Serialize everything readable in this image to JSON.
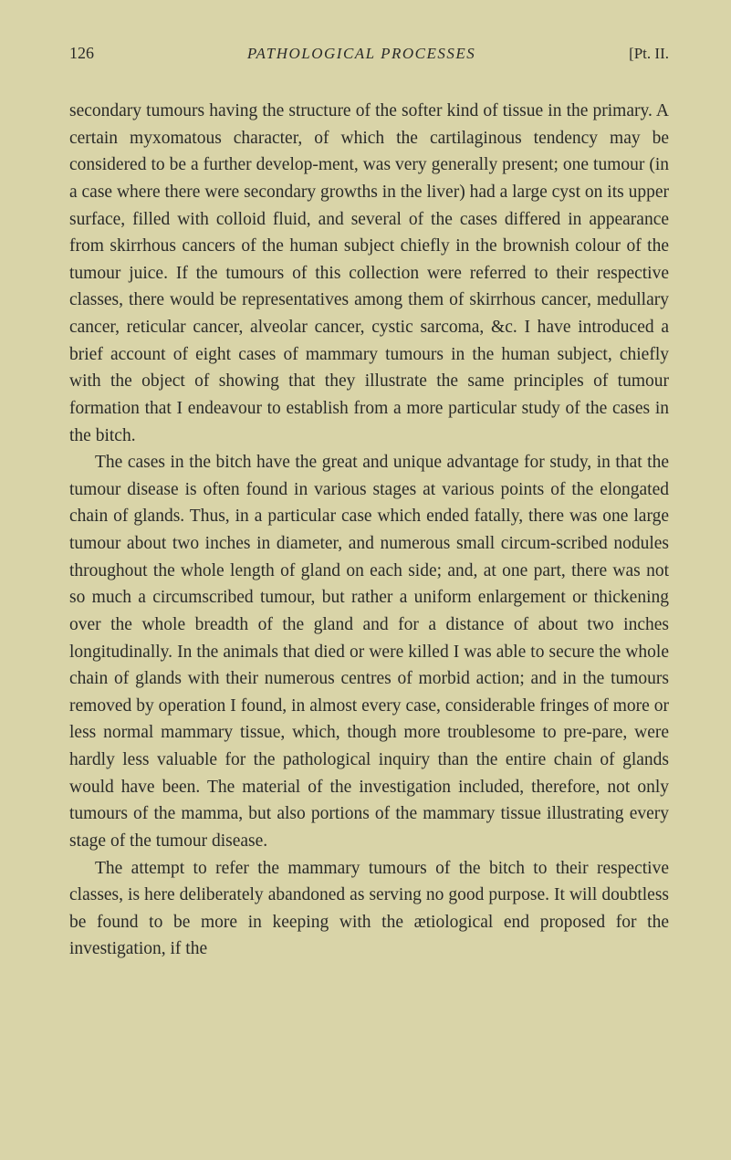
{
  "header": {
    "page_number": "126",
    "running_title": "PATHOLOGICAL PROCESSES",
    "part_label": "[Pt. II."
  },
  "paragraphs": {
    "p1": "secondary tumours having the structure of the softer kind of tissue in the primary. A certain myxomatous character, of which the cartilaginous tendency may be considered to be a further develop-ment, was very generally present; one tumour (in a case where there were secondary growths in the liver) had a large cyst on its upper surface, filled with colloid fluid, and several of the cases differed in appearance from skirrhous cancers of the human subject chiefly in the brownish colour of the tumour juice. If the tumours of this collection were referred to their respective classes, there would be representatives among them of skirrhous cancer, medullary cancer, reticular cancer, alveolar cancer, cystic sarcoma, &c. I have introduced a brief account of eight cases of mammary tumours in the human subject, chiefly with the object of showing that they illustrate the same principles of tumour formation that I endeavour to establish from a more particular study of the cases in the bitch.",
    "p2": "The cases in the bitch have the great and unique advantage for study, in that the tumour disease is often found in various stages at various points of the elongated chain of glands. Thus, in a particular case which ended fatally, there was one large tumour about two inches in diameter, and numerous small circum-scribed nodules throughout the whole length of gland on each side; and, at one part, there was not so much a circumscribed tumour, but rather a uniform enlargement or thickening over the whole breadth of the gland and for a distance of about two inches longitudinally. In the animals that died or were killed I was able to secure the whole chain of glands with their numerous centres of morbid action; and in the tumours removed by operation I found, in almost every case, considerable fringes of more or less normal mammary tissue, which, though more troublesome to pre-pare, were hardly less valuable for the pathological inquiry than the entire chain of glands would have been. The material of the investigation included, therefore, not only tumours of the mamma, but also portions of the mammary tissue illustrating every stage of the tumour disease.",
    "p3": "The attempt to refer the mammary tumours of the bitch to their respective classes, is here deliberately abandoned as serving no good purpose. It will doubtless be found to be more in keeping with the ætiological end proposed for the investigation, if the"
  }
}
